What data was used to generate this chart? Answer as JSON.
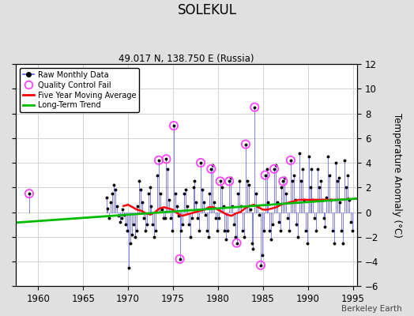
{
  "title": "SOLEKUL",
  "subtitle": "49.017 N, 138.750 E (Russia)",
  "ylabel": "Temperature Anomaly (°C)",
  "watermark": "Berkeley Earth",
  "xlim": [
    1957.5,
    1995.5
  ],
  "ylim": [
    -6,
    12
  ],
  "yticks": [
    -6,
    -4,
    -2,
    0,
    2,
    4,
    6,
    8,
    10,
    12
  ],
  "xticks": [
    1960,
    1965,
    1970,
    1975,
    1980,
    1985,
    1990,
    1995
  ],
  "bg_color": "#e0e0e0",
  "plot_bg_color": "#ffffff",
  "raw_line_color": "#5555ff",
  "raw_marker_color": "#000000",
  "qc_fail_color": "#ff44ff",
  "moving_avg_color": "#ff0000",
  "trend_color": "#00bb00",
  "raw_monthly_data": [
    [
      1959.0,
      1.5
    ],
    [
      1967.583,
      1.2
    ],
    [
      1967.75,
      0.3
    ],
    [
      1967.917,
      -0.5
    ],
    [
      1968.083,
      0.8
    ],
    [
      1968.25,
      1.5
    ],
    [
      1968.417,
      2.2
    ],
    [
      1968.583,
      1.8
    ],
    [
      1968.75,
      0.5
    ],
    [
      1968.917,
      -0.3
    ],
    [
      1969.083,
      -0.8
    ],
    [
      1969.25,
      -0.5
    ],
    [
      1969.417,
      0.2
    ],
    [
      1969.583,
      -0.2
    ],
    [
      1969.75,
      -1.0
    ],
    [
      1969.917,
      -1.5
    ],
    [
      1970.083,
      -4.5
    ],
    [
      1970.25,
      -2.5
    ],
    [
      1970.417,
      -1.8
    ],
    [
      1970.583,
      -1.0
    ],
    [
      1970.75,
      -2.0
    ],
    [
      1970.917,
      -1.5
    ],
    [
      1971.083,
      0.5
    ],
    [
      1971.25,
      2.5
    ],
    [
      1971.417,
      1.8
    ],
    [
      1971.583,
      0.8
    ],
    [
      1971.75,
      -0.5
    ],
    [
      1971.917,
      -1.5
    ],
    [
      1972.083,
      -1.0
    ],
    [
      1972.25,
      1.5
    ],
    [
      1972.417,
      2.0
    ],
    [
      1972.583,
      0.5
    ],
    [
      1972.75,
      -1.0
    ],
    [
      1972.917,
      -2.0
    ],
    [
      1973.083,
      -1.5
    ],
    [
      1973.25,
      3.0
    ],
    [
      1973.417,
      4.2
    ],
    [
      1973.583,
      1.5
    ],
    [
      1973.75,
      0.2
    ],
    [
      1973.917,
      -0.5
    ],
    [
      1974.083,
      -0.5
    ],
    [
      1974.25,
      4.3
    ],
    [
      1974.417,
      3.5
    ],
    [
      1974.583,
      1.0
    ],
    [
      1974.75,
      -0.5
    ],
    [
      1974.917,
      -1.5
    ],
    [
      1975.083,
      7.0
    ],
    [
      1975.25,
      1.5
    ],
    [
      1975.417,
      0.5
    ],
    [
      1975.583,
      -0.3
    ],
    [
      1975.75,
      -3.8
    ],
    [
      1975.917,
      -1.5
    ],
    [
      1976.083,
      -1.0
    ],
    [
      1976.25,
      1.5
    ],
    [
      1976.417,
      1.8
    ],
    [
      1976.583,
      0.5
    ],
    [
      1976.75,
      -1.0
    ],
    [
      1976.917,
      -2.0
    ],
    [
      1977.083,
      -0.5
    ],
    [
      1977.25,
      2.0
    ],
    [
      1977.417,
      2.5
    ],
    [
      1977.583,
      0.8
    ],
    [
      1977.75,
      -0.5
    ],
    [
      1977.917,
      -1.5
    ],
    [
      1978.083,
      4.0
    ],
    [
      1978.25,
      1.8
    ],
    [
      1978.417,
      0.8
    ],
    [
      1978.583,
      -0.2
    ],
    [
      1978.75,
      -1.5
    ],
    [
      1978.917,
      -2.0
    ],
    [
      1979.083,
      1.5
    ],
    [
      1979.25,
      3.5
    ],
    [
      1979.417,
      3.8
    ],
    [
      1979.583,
      0.8
    ],
    [
      1979.75,
      -0.5
    ],
    [
      1979.917,
      -1.5
    ],
    [
      1980.083,
      -0.5
    ],
    [
      1980.25,
      2.5
    ],
    [
      1980.417,
      2.0
    ],
    [
      1980.583,
      0.5
    ],
    [
      1980.75,
      -1.5
    ],
    [
      1980.917,
      -2.2
    ],
    [
      1981.083,
      -1.5
    ],
    [
      1981.25,
      2.5
    ],
    [
      1981.417,
      2.8
    ],
    [
      1981.583,
      0.5
    ],
    [
      1981.75,
      -1.0
    ],
    [
      1981.917,
      -2.0
    ],
    [
      1982.083,
      -2.5
    ],
    [
      1982.25,
      1.5
    ],
    [
      1982.417,
      2.5
    ],
    [
      1982.583,
      0.5
    ],
    [
      1982.75,
      -1.5
    ],
    [
      1982.917,
      -2.0
    ],
    [
      1983.083,
      5.5
    ],
    [
      1983.25,
      2.5
    ],
    [
      1983.417,
      2.2
    ],
    [
      1983.583,
      0.2
    ],
    [
      1983.75,
      -2.5
    ],
    [
      1983.917,
      -3.0
    ],
    [
      1984.083,
      8.5
    ],
    [
      1984.25,
      1.5
    ],
    [
      1984.417,
      0.5
    ],
    [
      1984.583,
      -0.2
    ],
    [
      1984.75,
      -4.3
    ],
    [
      1984.917,
      -3.5
    ],
    [
      1985.083,
      -1.5
    ],
    [
      1985.25,
      3.0
    ],
    [
      1985.417,
      3.5
    ],
    [
      1985.583,
      0.8
    ],
    [
      1985.75,
      -1.5
    ],
    [
      1985.917,
      -2.2
    ],
    [
      1986.083,
      -1.0
    ],
    [
      1986.25,
      3.5
    ],
    [
      1986.417,
      3.8
    ],
    [
      1986.583,
      0.8
    ],
    [
      1986.75,
      -0.8
    ],
    [
      1986.917,
      -1.5
    ],
    [
      1987.083,
      2.0
    ],
    [
      1987.25,
      2.5
    ],
    [
      1987.417,
      2.8
    ],
    [
      1987.583,
      1.5
    ],
    [
      1987.75,
      -0.5
    ],
    [
      1987.917,
      -1.5
    ],
    [
      1988.083,
      4.2
    ],
    [
      1988.25,
      2.5
    ],
    [
      1988.417,
      3.0
    ],
    [
      1988.583,
      1.0
    ],
    [
      1988.75,
      -1.0
    ],
    [
      1988.917,
      -2.0
    ],
    [
      1989.083,
      4.8
    ],
    [
      1989.25,
      2.5
    ],
    [
      1989.417,
      3.5
    ],
    [
      1989.583,
      1.0
    ],
    [
      1989.75,
      -1.5
    ],
    [
      1989.917,
      -2.5
    ],
    [
      1990.083,
      4.5
    ],
    [
      1990.25,
      2.0
    ],
    [
      1990.417,
      3.5
    ],
    [
      1990.583,
      1.0
    ],
    [
      1990.75,
      -0.5
    ],
    [
      1990.917,
      -1.5
    ],
    [
      1991.083,
      3.5
    ],
    [
      1991.25,
      2.0
    ],
    [
      1991.417,
      2.5
    ],
    [
      1991.583,
      1.0
    ],
    [
      1991.75,
      -0.5
    ],
    [
      1991.917,
      -1.2
    ],
    [
      1992.083,
      1.2
    ],
    [
      1992.25,
      4.5
    ],
    [
      1992.417,
      3.0
    ],
    [
      1992.583,
      1.0
    ],
    [
      1992.75,
      -1.5
    ],
    [
      1992.917,
      -2.5
    ],
    [
      1993.083,
      4.0
    ],
    [
      1993.25,
      2.5
    ],
    [
      1993.417,
      2.8
    ],
    [
      1993.583,
      0.8
    ],
    [
      1993.75,
      -1.5
    ],
    [
      1993.917,
      -2.5
    ],
    [
      1994.083,
      4.2
    ],
    [
      1994.25,
      2.0
    ],
    [
      1994.417,
      3.0
    ],
    [
      1994.583,
      1.0
    ],
    [
      1994.75,
      -0.8
    ],
    [
      1994.917,
      -1.5
    ]
  ],
  "qc_fail_points": [
    [
      1959.0,
      1.5
    ],
    [
      1973.417,
      4.2
    ],
    [
      1974.25,
      4.3
    ],
    [
      1975.083,
      7.0
    ],
    [
      1975.75,
      -3.8
    ],
    [
      1978.083,
      4.0
    ],
    [
      1979.25,
      3.5
    ],
    [
      1980.25,
      2.5
    ],
    [
      1981.25,
      2.5
    ],
    [
      1982.083,
      -2.5
    ],
    [
      1983.083,
      5.5
    ],
    [
      1984.083,
      8.5
    ],
    [
      1984.75,
      -4.3
    ],
    [
      1985.25,
      3.0
    ],
    [
      1986.25,
      3.5
    ],
    [
      1987.25,
      2.5
    ],
    [
      1988.083,
      4.2
    ]
  ],
  "moving_avg": [
    [
      1969.5,
      0.5
    ],
    [
      1970.0,
      0.6
    ],
    [
      1970.5,
      0.4
    ],
    [
      1971.0,
      0.2
    ],
    [
      1971.5,
      0.1
    ],
    [
      1972.0,
      -0.1
    ],
    [
      1972.5,
      -0.2
    ],
    [
      1973.0,
      0.0
    ],
    [
      1973.5,
      0.3
    ],
    [
      1974.0,
      0.4
    ],
    [
      1974.5,
      0.3
    ],
    [
      1975.0,
      0.2
    ],
    [
      1975.5,
      -0.1
    ],
    [
      1976.0,
      -0.3
    ],
    [
      1976.5,
      -0.2
    ],
    [
      1977.0,
      -0.1
    ],
    [
      1977.5,
      0.0
    ],
    [
      1978.0,
      0.1
    ],
    [
      1978.5,
      0.2
    ],
    [
      1979.0,
      0.4
    ],
    [
      1979.5,
      0.4
    ],
    [
      1980.0,
      0.2
    ],
    [
      1980.5,
      0.0
    ],
    [
      1981.0,
      -0.2
    ],
    [
      1981.5,
      -0.3
    ],
    [
      1982.0,
      -0.1
    ],
    [
      1982.5,
      0.0
    ],
    [
      1983.0,
      0.3
    ],
    [
      1983.5,
      0.5
    ],
    [
      1984.0,
      0.6
    ],
    [
      1984.5,
      0.4
    ],
    [
      1985.0,
      0.2
    ],
    [
      1985.5,
      0.2
    ],
    [
      1986.0,
      0.3
    ],
    [
      1986.5,
      0.4
    ],
    [
      1987.0,
      0.6
    ],
    [
      1987.5,
      0.7
    ],
    [
      1988.0,
      0.8
    ],
    [
      1988.5,
      0.9
    ],
    [
      1989.0,
      1.0
    ],
    [
      1989.5,
      1.0
    ],
    [
      1990.0,
      1.0
    ],
    [
      1990.5,
      1.0
    ],
    [
      1991.0,
      1.0
    ],
    [
      1991.5,
      1.0
    ],
    [
      1992.0,
      1.0
    ],
    [
      1992.5,
      1.0
    ],
    [
      1993.0,
      1.0
    ],
    [
      1993.5,
      1.0
    ],
    [
      1994.0,
      1.0
    ],
    [
      1994.5,
      1.1
    ]
  ],
  "trend_line": [
    [
      1957.5,
      -0.85
    ],
    [
      1995.5,
      1.1
    ]
  ]
}
